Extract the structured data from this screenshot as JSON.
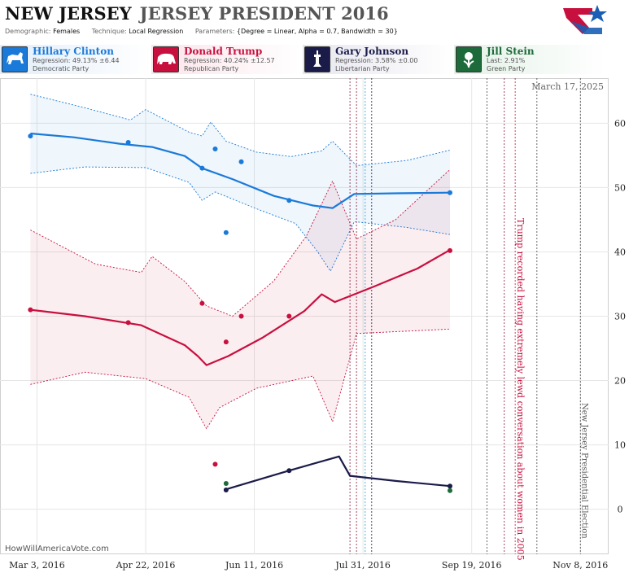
{
  "header": {
    "state": "NEW JERSEY",
    "race": "JERSEY PRESIDENT 2016",
    "meta": [
      {
        "key": "Demographic:",
        "value": "Females"
      },
      {
        "key": "Technique:",
        "value": "Local Regression"
      },
      {
        "key": "Parameters:",
        "value": "{Degree = Linear, Alpha = 0.7, Bandwidth = 30}"
      }
    ]
  },
  "candidates": [
    {
      "name": "Hillary Clinton",
      "line2": "Regression: 49.13% ±6.44",
      "line3": "Democratic Party",
      "color": "#1a7ad9",
      "icon": "donkey-icon"
    },
    {
      "name": "Donald Trump",
      "line2": "Regression: 40.24% ±12.57",
      "line3": "Republican Party",
      "color": "#c8103e",
      "icon": "elephant-icon"
    },
    {
      "name": "Gary Johnson",
      "line2": "Regression: 3.58% ±0.00",
      "line3": "Libertarian Party",
      "color": "#1b1b4a",
      "icon": "liberty-icon"
    },
    {
      "name": "Jill Stein",
      "line2": "Last: 2.91%",
      "line3": "Green Party",
      "color": "#1d6b3a",
      "icon": "leaf-icon"
    }
  ],
  "chart_data": {
    "type": "line",
    "as_of": "March 17, 2025",
    "watermark": "HowWillAmericaVote.com",
    "x_ticks": [
      "Mar 3, 2016",
      "Apr 22, 2016",
      "Jun 11, 2016",
      "Jul 31, 2016",
      "Sep 19, 2016",
      "Nov 8, 2016"
    ],
    "x_range": [
      "2016-02-15",
      "2016-11-21"
    ],
    "y_ticks": [
      0,
      10,
      20,
      30,
      40,
      50,
      60
    ],
    "ylim": [
      -7,
      67
    ],
    "grid": true,
    "annotations": [
      {
        "date": "2016-10-07",
        "text": "Trump recorded having extremely lewd conversation about women in 2005"
      },
      {
        "date": "2016-11-08",
        "text": "New Jersey Presidential Election"
      }
    ],
    "event_lines": [
      "2016-07-25",
      "2016-07-28",
      "2016-08-01",
      "2016-08-04",
      "2016-09-26",
      "2016-10-04",
      "2016-10-09",
      "2016-10-19",
      "2016-11-08"
    ],
    "series": [
      {
        "name": "Hillary Clinton",
        "color": "#1a7ad9",
        "points": [
          [
            "2016-02-29",
            58.0
          ],
          [
            "2016-04-14",
            57.0
          ],
          [
            "2016-05-18",
            53.0
          ],
          [
            "2016-05-24",
            56.0
          ],
          [
            "2016-05-29",
            43.0
          ],
          [
            "2016-06-05",
            54.0
          ],
          [
            "2016-06-27",
            48.0
          ],
          [
            "2016-09-09",
            49.2
          ]
        ],
        "fit": [
          [
            "2016-02-29",
            58.4
          ],
          [
            "2016-03-20",
            57.8
          ],
          [
            "2016-04-10",
            56.8
          ],
          [
            "2016-04-25",
            56.3
          ],
          [
            "2016-05-10",
            54.9
          ],
          [
            "2016-05-18",
            53.0
          ],
          [
            "2016-06-01",
            51.3
          ],
          [
            "2016-06-20",
            48.7
          ],
          [
            "2016-07-08",
            47.2
          ],
          [
            "2016-07-17",
            46.8
          ],
          [
            "2016-07-27",
            49.0
          ],
          [
            "2016-08-15",
            49.1
          ],
          [
            "2016-09-09",
            49.2
          ]
        ],
        "upper": [
          [
            "2016-02-29",
            64.5
          ],
          [
            "2016-03-25",
            62.4
          ],
          [
            "2016-04-15",
            60.5
          ],
          [
            "2016-04-22",
            62.1
          ],
          [
            "2016-05-12",
            58.6
          ],
          [
            "2016-05-18",
            58.0
          ],
          [
            "2016-05-22",
            60.2
          ],
          [
            "2016-05-29",
            57.2
          ],
          [
            "2016-06-12",
            55.5
          ],
          [
            "2016-06-28",
            54.8
          ],
          [
            "2016-07-12",
            55.7
          ],
          [
            "2016-07-17",
            57.2
          ],
          [
            "2016-07-28",
            53.4
          ],
          [
            "2016-08-20",
            54.2
          ],
          [
            "2016-09-09",
            55.8
          ]
        ],
        "lower": [
          [
            "2016-02-29",
            52.2
          ],
          [
            "2016-03-25",
            53.2
          ],
          [
            "2016-04-22",
            53.1
          ],
          [
            "2016-05-12",
            50.8
          ],
          [
            "2016-05-18",
            48.0
          ],
          [
            "2016-05-24",
            49.3
          ],
          [
            "2016-06-12",
            46.7
          ],
          [
            "2016-06-30",
            44.4
          ],
          [
            "2016-07-10",
            40.1
          ],
          [
            "2016-07-16",
            37.0
          ],
          [
            "2016-07-27",
            44.7
          ],
          [
            "2016-08-20",
            43.8
          ],
          [
            "2016-09-09",
            42.7
          ]
        ]
      },
      {
        "name": "Donald Trump",
        "color": "#c8103e",
        "points": [
          [
            "2016-02-29",
            31.0
          ],
          [
            "2016-04-14",
            29.0
          ],
          [
            "2016-05-18",
            32.0
          ],
          [
            "2016-05-24",
            7.0
          ],
          [
            "2016-05-29",
            26.0
          ],
          [
            "2016-06-05",
            30.0
          ],
          [
            "2016-06-27",
            30.0
          ],
          [
            "2016-09-09",
            40.2
          ]
        ],
        "fit": [
          [
            "2016-02-29",
            31.0
          ],
          [
            "2016-03-25",
            30.0
          ],
          [
            "2016-04-20",
            28.6
          ],
          [
            "2016-05-10",
            25.5
          ],
          [
            "2016-05-16",
            23.8
          ],
          [
            "2016-05-20",
            22.4
          ],
          [
            "2016-05-30",
            23.8
          ],
          [
            "2016-06-15",
            26.7
          ],
          [
            "2016-07-04",
            30.8
          ],
          [
            "2016-07-12",
            33.4
          ],
          [
            "2016-07-18",
            32.2
          ],
          [
            "2016-08-05",
            34.6
          ],
          [
            "2016-08-25",
            37.4
          ],
          [
            "2016-09-09",
            40.3
          ]
        ],
        "upper": [
          [
            "2016-02-29",
            43.4
          ],
          [
            "2016-03-30",
            38.1
          ],
          [
            "2016-04-20",
            36.8
          ],
          [
            "2016-04-25",
            39.3
          ],
          [
            "2016-05-10",
            35.4
          ],
          [
            "2016-05-20",
            31.6
          ],
          [
            "2016-06-01",
            30.0
          ],
          [
            "2016-06-20",
            35.5
          ],
          [
            "2016-07-05",
            42.5
          ],
          [
            "2016-07-17",
            51.0
          ],
          [
            "2016-07-28",
            42.0
          ],
          [
            "2016-08-15",
            45.0
          ],
          [
            "2016-09-09",
            52.8
          ]
        ],
        "lower": [
          [
            "2016-02-29",
            19.4
          ],
          [
            "2016-03-25",
            21.3
          ],
          [
            "2016-04-22",
            20.3
          ],
          [
            "2016-05-12",
            17.4
          ],
          [
            "2016-05-20",
            12.5
          ],
          [
            "2016-05-26",
            15.8
          ],
          [
            "2016-06-12",
            18.8
          ],
          [
            "2016-07-08",
            20.7
          ],
          [
            "2016-07-17",
            13.6
          ],
          [
            "2016-07-28",
            27.3
          ],
          [
            "2016-09-09",
            28.0
          ]
        ]
      },
      {
        "name": "Gary Johnson",
        "color": "#1b1b4a",
        "points": [
          [
            "2016-05-29",
            3.0
          ],
          [
            "2016-06-27",
            6.0
          ],
          [
            "2016-09-09",
            3.6
          ]
        ],
        "fit": [
          [
            "2016-05-29",
            3.1
          ],
          [
            "2016-06-27",
            6.0
          ],
          [
            "2016-07-20",
            8.2
          ],
          [
            "2016-07-25",
            5.2
          ],
          [
            "2016-08-15",
            4.4
          ],
          [
            "2016-09-09",
            3.6
          ]
        ]
      },
      {
        "name": "Jill Stein",
        "color": "#1d6b3a",
        "points": [
          [
            "2016-05-29",
            4.0
          ],
          [
            "2016-09-09",
            2.9
          ]
        ]
      }
    ]
  }
}
